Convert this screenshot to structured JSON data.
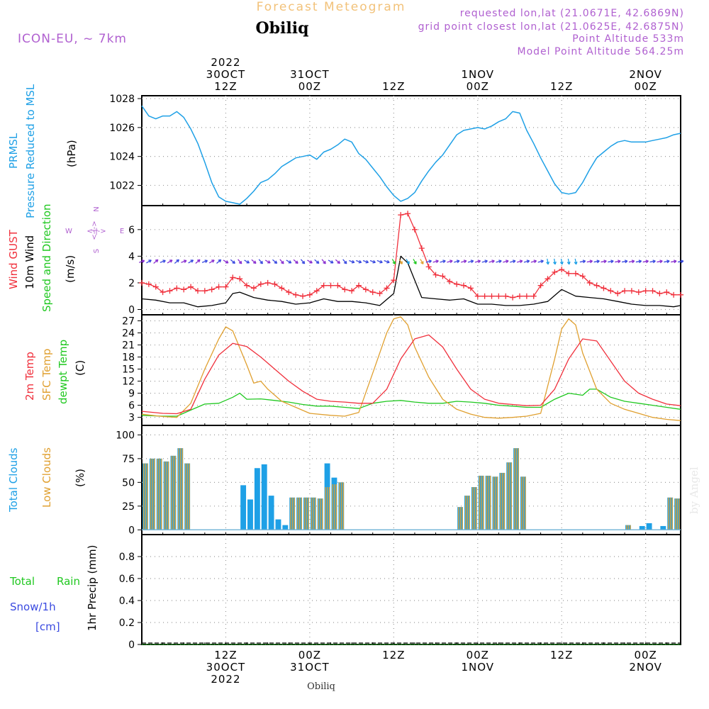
{
  "header": {
    "forecast_title": "Forecast Meteogram",
    "location": "Obiliq",
    "model": "ICON-EU, ~ 7km",
    "requested": "requested lon,lat (21.0671E, 42.6869N)",
    "grid_point": "grid point closest lon,lat (21.0625E, 42.6875N)",
    "point_altitude": "Point Altitude 533m",
    "model_altitude": "Model Point Altitude 564.25m",
    "footer_location": "Obiliq",
    "watermark": "by Angel"
  },
  "colors": {
    "pressure": "#1ea0e6",
    "gust": "#f0303c",
    "wind": "#000000",
    "temp": "#f0303c",
    "sfc_temp": "#e0a030",
    "dewpt": "#20c820",
    "total_cloud": "#1ea0e6",
    "low_cloud": "#e0a030",
    "title": "#f2c27a",
    "info": "#b060d0"
  },
  "time_axis": {
    "top_labels": [
      {
        "h": 12,
        "lines": [
          "2022",
          "30OCT",
          "12Z"
        ]
      },
      {
        "h": 24,
        "lines": [
          "31OCT",
          "00Z"
        ]
      },
      {
        "h": 36,
        "lines": [
          "12Z"
        ]
      },
      {
        "h": 48,
        "lines": [
          "1NOV",
          "00Z"
        ]
      },
      {
        "h": 60,
        "lines": [
          "12Z"
        ]
      },
      {
        "h": 72,
        "lines": [
          "2NOV",
          "00Z"
        ]
      }
    ],
    "bottom_labels": [
      {
        "h": 12,
        "lines": [
          "12Z",
          "30OCT",
          "2022"
        ]
      },
      {
        "h": 24,
        "lines": [
          "00Z",
          "31OCT"
        ]
      },
      {
        "h": 36,
        "lines": [
          "12Z"
        ]
      },
      {
        "h": 48,
        "lines": [
          "00Z",
          "1NOV"
        ]
      },
      {
        "h": 60,
        "lines": [
          "12Z"
        ]
      },
      {
        "h": 72,
        "lines": [
          "00Z",
          "2NOV"
        ]
      }
    ]
  },
  "panel_labels": {
    "pressure": {
      "name1": "PRMSL",
      "name2": "Pressure Reduced to MSL",
      "unit": "(hPa)"
    },
    "wind": {
      "name1": "Wind GUST",
      "name2": "10m Wind",
      "name3": "Speed and Direction",
      "unit": "(m/s)",
      "compass_n": "N",
      "compass_s": "S",
      "compass_w": "W",
      "compass_e": "E",
      "compass_mid": "<-|->"
    },
    "temp": {
      "name1": "2m Temp",
      "name2": "SFC Temp",
      "name3": "dewpt Temp",
      "unit": "(C)"
    },
    "cloud": {
      "name1": "Total Clouds",
      "name2": "Low Clouds",
      "unit": "(%)"
    },
    "precip": {
      "name1": "Total",
      "name1b": "Rain",
      "name2": "Snow/1h",
      "name3": "[cm]",
      "unit": "1hr Precip (mm)"
    }
  },
  "chart_data": [
    {
      "type": "line",
      "title": "PRMSL Pressure Reduced to MSL",
      "ylabel": "(hPa)",
      "ylim": [
        1020.6,
        1028.2
      ],
      "yticks": [
        1022,
        1024,
        1026,
        1028
      ],
      "xlim_hours": [
        0,
        77
      ],
      "grid": true,
      "series": [
        {
          "name": "PRMSL",
          "x": [
            0,
            1,
            2,
            3,
            4,
            5,
            6,
            7,
            8,
            9,
            10,
            11,
            12,
            13,
            14,
            15,
            16,
            17,
            18,
            19,
            20,
            21,
            22,
            23,
            24,
            25,
            26,
            27,
            28,
            29,
            30,
            31,
            32,
            33,
            34,
            35,
            36,
            37,
            38,
            39,
            40,
            41,
            42,
            43,
            44,
            45,
            46,
            47,
            48,
            49,
            50,
            51,
            52,
            53,
            54,
            55,
            56,
            57,
            58,
            59,
            60,
            61,
            62,
            63,
            64,
            65,
            66,
            67,
            68,
            69,
            70,
            71,
            72,
            73,
            74,
            75,
            76,
            77
          ],
          "y": [
            1027.5,
            1026.8,
            1026.6,
            1026.8,
            1026.8,
            1027.1,
            1026.7,
            1025.9,
            1024.9,
            1023.6,
            1022.2,
            1021.2,
            1020.9,
            1020.8,
            1020.7,
            1021.1,
            1021.6,
            1022.2,
            1022.4,
            1022.8,
            1023.3,
            1023.6,
            1023.9,
            1024.0,
            1024.1,
            1023.8,
            1024.3,
            1024.5,
            1024.8,
            1025.2,
            1025.0,
            1024.2,
            1023.8,
            1023.2,
            1022.6,
            1021.9,
            1021.3,
            1020.9,
            1021.1,
            1021.5,
            1022.3,
            1023.0,
            1023.6,
            1024.1,
            1024.8,
            1025.5,
            1025.8,
            1025.9,
            1026.0,
            1025.9,
            1026.1,
            1026.4,
            1026.6,
            1027.1,
            1027.0,
            1025.8,
            1024.9,
            1023.9,
            1023.0,
            1022.1,
            1021.5,
            1021.4,
            1021.5,
            1022.2,
            1023.1,
            1023.9,
            1024.3,
            1024.7,
            1025.0,
            1025.1,
            1025.0,
            1025.0,
            1025.0,
            1025.1,
            1025.2,
            1025.3,
            1025.5,
            1025.6
          ]
        }
      ]
    },
    {
      "type": "line",
      "title": "Wind GUST / 10m Wind Speed and Direction",
      "ylabel": "(m/s)",
      "ylim": [
        -0.4,
        7.8
      ],
      "yticks": [
        0,
        2,
        4,
        6
      ],
      "grid": true,
      "series": [
        {
          "name": "Wind GUST",
          "x": [
            0,
            1,
            2,
            3,
            4,
            5,
            6,
            7,
            8,
            9,
            10,
            11,
            12,
            13,
            14,
            15,
            16,
            17,
            18,
            19,
            20,
            21,
            22,
            23,
            24,
            25,
            26,
            27,
            28,
            29,
            30,
            31,
            32,
            33,
            34,
            35,
            36,
            37,
            38,
            39,
            40,
            41,
            42,
            43,
            44,
            45,
            46,
            47,
            48,
            49,
            50,
            51,
            52,
            53,
            54,
            55,
            56,
            57,
            58,
            59,
            60,
            61,
            62,
            63,
            64,
            65,
            66,
            67,
            68,
            69,
            70,
            71,
            72,
            73,
            74,
            75,
            76,
            77
          ],
          "y": [
            2.0,
            1.9,
            1.7,
            1.3,
            1.4,
            1.6,
            1.5,
            1.7,
            1.4,
            1.4,
            1.5,
            1.7,
            1.7,
            2.4,
            2.3,
            1.8,
            1.6,
            1.9,
            2.0,
            1.9,
            1.6,
            1.3,
            1.1,
            1.0,
            1.1,
            1.4,
            1.8,
            1.8,
            1.8,
            1.5,
            1.4,
            1.8,
            1.5,
            1.3,
            1.2,
            1.6,
            2.2,
            7.1,
            7.2,
            6.0,
            4.6,
            3.2,
            2.6,
            2.5,
            2.1,
            1.9,
            1.8,
            1.6,
            1.0,
            1.0,
            1.0,
            1.0,
            1.0,
            0.9,
            1.0,
            1.0,
            1.0,
            1.8,
            2.3,
            2.8,
            3.0,
            2.7,
            2.7,
            2.5,
            2.0,
            1.8,
            1.6,
            1.4,
            1.2,
            1.4,
            1.4,
            1.3,
            1.4,
            1.4,
            1.2,
            1.3,
            1.1,
            1.1
          ]
        },
        {
          "name": "10m Wind",
          "x": [
            0,
            2,
            4,
            6,
            8,
            10,
            12,
            13,
            14,
            16,
            18,
            20,
            22,
            24,
            26,
            28,
            30,
            32,
            34,
            36,
            37,
            38,
            40,
            42,
            44,
            46,
            48,
            50,
            52,
            54,
            56,
            58,
            60,
            62,
            64,
            66,
            68,
            70,
            72,
            74,
            76,
            77
          ],
          "y": [
            0.8,
            0.7,
            0.5,
            0.5,
            0.2,
            0.3,
            0.5,
            1.2,
            1.3,
            0.9,
            0.7,
            0.6,
            0.4,
            0.5,
            0.8,
            0.6,
            0.6,
            0.5,
            0.3,
            1.2,
            4.0,
            3.5,
            0.9,
            0.8,
            0.7,
            0.8,
            0.4,
            0.4,
            0.3,
            0.3,
            0.4,
            0.6,
            1.5,
            1.0,
            0.9,
            0.8,
            0.6,
            0.4,
            0.3,
            0.3,
            0.2,
            0.3
          ]
        }
      ]
    },
    {
      "type": "line",
      "title": "2m Temp / SFC Temp / dewpt Temp",
      "ylabel": "(C)",
      "ylim": [
        1,
        28.5
      ],
      "yticks": [
        3,
        6,
        9,
        12,
        15,
        18,
        21,
        24,
        27
      ],
      "grid": true,
      "series": [
        {
          "name": "2m Temp",
          "x": [
            0,
            3,
            5,
            7,
            9,
            11,
            13,
            15,
            17,
            19,
            21,
            23,
            25,
            27,
            29,
            31,
            33,
            35,
            37,
            39,
            41,
            43,
            45,
            47,
            49,
            51,
            53,
            55,
            57,
            59,
            61,
            63,
            65,
            67,
            69,
            71,
            73,
            75,
            77
          ],
          "y": [
            4.5,
            4.0,
            3.9,
            5.0,
            12.5,
            18.5,
            21.4,
            20.6,
            18.0,
            15.0,
            12.0,
            9.5,
            7.5,
            7.0,
            6.8,
            6.5,
            6.5,
            10.0,
            17.5,
            22.5,
            23.5,
            20.5,
            15.0,
            10.0,
            7.5,
            6.5,
            6.2,
            5.9,
            6.0,
            10.0,
            17.5,
            22.5,
            22.0,
            17.0,
            12.0,
            9.0,
            7.5,
            6.3,
            5.9
          ]
        },
        {
          "name": "SFC Temp",
          "x": [
            0,
            3,
            5,
            7,
            9,
            11,
            12,
            13,
            15,
            16,
            17,
            18,
            20,
            22,
            24,
            27,
            29,
            31,
            33,
            35,
            36,
            37,
            38,
            39,
            41,
            43,
            45,
            47,
            49,
            51,
            53,
            55,
            57,
            59,
            60,
            61,
            62,
            63,
            65,
            67,
            69,
            71,
            73,
            75,
            77
          ],
          "y": [
            3.8,
            3.2,
            3.0,
            6.5,
            15.0,
            22.5,
            25.5,
            24.5,
            16.0,
            11.5,
            12.0,
            10.0,
            7.0,
            5.5,
            4.0,
            3.5,
            3.3,
            4.2,
            14.0,
            24.0,
            27.5,
            28.0,
            26.0,
            20.5,
            13.0,
            7.5,
            5.0,
            3.8,
            3.0,
            2.8,
            3.0,
            3.3,
            4.0,
            17.5,
            25.0,
            27.5,
            26.0,
            19.0,
            10.0,
            6.5,
            5.0,
            4.0,
            3.0,
            2.5,
            2.2
          ]
        },
        {
          "name": "dewpt Temp",
          "x": [
            0,
            3,
            5,
            7,
            9,
            11,
            13,
            14,
            15,
            17,
            19,
            21,
            23,
            25,
            27,
            29,
            31,
            33,
            35,
            37,
            39,
            41,
            43,
            45,
            47,
            49,
            51,
            53,
            55,
            57,
            59,
            61,
            63,
            64,
            65,
            67,
            69,
            71,
            73,
            75,
            77
          ],
          "y": [
            3.5,
            3.3,
            3.3,
            4.8,
            6.3,
            6.5,
            8.0,
            9.0,
            7.5,
            7.6,
            7.2,
            6.8,
            6.2,
            5.8,
            5.8,
            5.5,
            5.2,
            6.5,
            7.0,
            7.2,
            6.8,
            6.5,
            6.5,
            7.0,
            6.8,
            6.5,
            6.0,
            5.8,
            5.5,
            5.5,
            7.5,
            9.0,
            8.5,
            10.0,
            10.0,
            8.0,
            7.0,
            6.5,
            6.0,
            5.5,
            5.0
          ]
        }
      ]
    },
    {
      "type": "bar",
      "title": "Total Clouds / Low Clouds",
      "ylabel": "(%)",
      "ylim": [
        -5,
        110
      ],
      "yticks": [
        0,
        25,
        50,
        75,
        100
      ],
      "grid": true,
      "series": [
        {
          "name": "Total Clouds",
          "x": [
            0,
            1,
            2,
            3,
            4,
            5,
            6,
            14,
            15,
            16,
            17,
            18,
            19,
            20,
            21,
            22,
            23,
            24,
            25,
            26,
            27,
            28,
            29,
            30,
            45,
            46,
            47,
            48,
            49,
            50,
            51,
            52,
            53,
            54,
            55,
            56,
            69,
            71,
            72,
            74,
            75,
            76
          ],
          "y": [
            70,
            75,
            75,
            72,
            78,
            86,
            70,
            47,
            32,
            65,
            69,
            36,
            11,
            5,
            34,
            34,
            34,
            34,
            33,
            70,
            55,
            50,
            0,
            0,
            24,
            36,
            45,
            57,
            57,
            56,
            60,
            71,
            86,
            56,
            0,
            0,
            5,
            4,
            7,
            4,
            34,
            33
          ]
        },
        {
          "name": "Low Clouds",
          "x": [
            0,
            1,
            2,
            3,
            4,
            5,
            6,
            14,
            15,
            16,
            17,
            18,
            19,
            20,
            21,
            22,
            23,
            24,
            25,
            26,
            27,
            28,
            29,
            30,
            45,
            46,
            47,
            48,
            49,
            50,
            51,
            52,
            53,
            54,
            55,
            56,
            69,
            71,
            72,
            74,
            75,
            76
          ],
          "y": [
            70,
            75,
            75,
            72,
            78,
            86,
            70,
            0,
            0,
            0,
            0,
            0,
            0,
            0,
            34,
            34,
            34,
            34,
            33,
            45,
            48,
            50,
            0,
            0,
            24,
            36,
            45,
            57,
            57,
            56,
            60,
            71,
            86,
            56,
            0,
            0,
            5,
            0,
            0,
            0,
            34,
            33
          ]
        }
      ]
    },
    {
      "type": "line",
      "title": "1hr Precip",
      "ylabel": "1hr Precip (mm)",
      "ylim": [
        0,
        1.0
      ],
      "yticks": [
        0,
        0.2,
        0.4,
        0.6,
        0.8
      ],
      "ytick_labels": [
        "0",
        "0.2",
        "0.4",
        "0.6",
        "0.8"
      ],
      "grid": true,
      "series": [
        {
          "name": "Total Rain",
          "x": [
            0,
            77
          ],
          "y": [
            0,
            0
          ]
        }
      ]
    }
  ]
}
